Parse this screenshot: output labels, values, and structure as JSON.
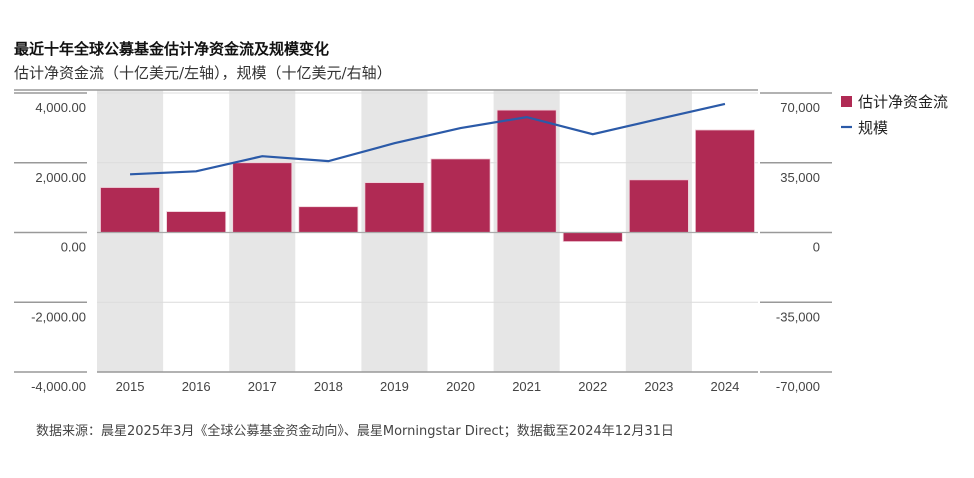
{
  "title": "最近十年全球公募基金估计净资金流及规模变化",
  "subtitle": "估计净资金流（十亿美元/左轴），规模（十亿美元/右轴）",
  "source": "数据来源：晨星2025年3月《全球公募基金资金动向》、晨星Morningstar Direct；数据截至2024年12月31日",
  "chart_data": {
    "type": "bar+line",
    "categories": [
      "2015",
      "2016",
      "2017",
      "2018",
      "2019",
      "2020",
      "2021",
      "2022",
      "2023",
      "2024"
    ],
    "series": [
      {
        "name": "估计净资金流",
        "type": "bar",
        "axis": "left",
        "color": "#b02a54",
        "values": [
          1290,
          600,
          2000,
          740,
          1430,
          2110,
          3510,
          -260,
          1510,
          2940
        ]
      },
      {
        "name": "规模",
        "type": "line",
        "axis": "right",
        "color": "#2b5aa8",
        "values": [
          29200,
          30700,
          38300,
          35800,
          44800,
          52400,
          57900,
          49300,
          57000,
          64500
        ]
      }
    ],
    "y_left": {
      "ylim": [
        -4000,
        4000
      ],
      "ticks": [
        4000,
        2000,
        0,
        -2000,
        -4000
      ],
      "tick_labels": [
        "4,000.00",
        "2,000.00",
        "0.00",
        "-2,000.00",
        "-4,000.00"
      ]
    },
    "y_right": {
      "ylim": [
        -70000,
        70000
      ],
      "ticks": [
        70000,
        35000,
        0,
        -35000,
        -70000
      ],
      "tick_labels": [
        "70,000",
        "35,000",
        "0",
        "-35,000",
        "-70,000"
      ]
    },
    "legend_placement": "top-right",
    "alternating_bands": true,
    "band_color": "#e6e6e6"
  }
}
